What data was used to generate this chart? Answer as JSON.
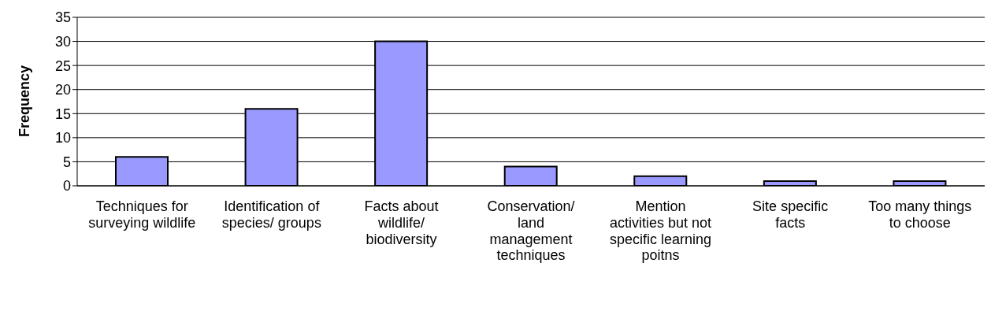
{
  "chart_data": {
    "type": "bar",
    "ylabel": "Frequency",
    "categories": [
      "Techniques for surveying wildlife",
      "Identification of species/ groups",
      "Facts about wildlife/ biodiversity",
      "Conservation/ land management techniques",
      "Mention activities but not specific learning poitns",
      "Site specific facts",
      "Too many things to choose"
    ],
    "values": [
      6,
      16,
      30,
      4,
      2,
      1,
      1
    ],
    "color": "#9999ff",
    "ylim": [
      0,
      35
    ],
    "yticks": [
      0,
      5,
      10,
      15,
      20,
      25,
      30,
      35
    ],
    "grid": "y"
  }
}
